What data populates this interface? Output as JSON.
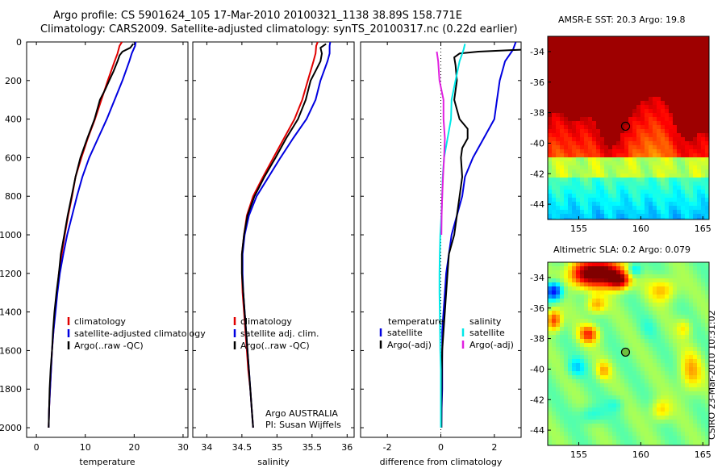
{
  "header": {
    "line1": "Argo profile: CS 5901624_105 17-Mar-2010 20100321_1138 38.89S 158.771E",
    "line2": "Climatology: CARS2009. Satellite-adjusted climatology: synTS_20100317.nc (0.22d earlier)"
  },
  "footer_stamp": "CSIRO 23-Mar-2010 10:31:02",
  "chart_data": [
    {
      "type": "line",
      "xlabel": "temperature",
      "xlim": [
        -2,
        31
      ],
      "ylim": [
        2050,
        0
      ],
      "xticks": [
        0,
        10,
        20,
        30
      ],
      "yticks": [
        0,
        200,
        400,
        600,
        800,
        1000,
        1200,
        1400,
        1600,
        1800,
        2000
      ],
      "legend": {
        "placement": "lower-left",
        "entries": [
          "climatology",
          "satellite-adjusted climatology",
          "Argo(..raw -QC)"
        ]
      },
      "series": [
        {
          "name": "climatology",
          "color": "#e00000",
          "points": [
            [
              17.5,
              0
            ],
            [
              17.0,
              20
            ],
            [
              16.6,
              60
            ],
            [
              16.0,
              100
            ],
            [
              14.6,
              200
            ],
            [
              13.3,
              300
            ],
            [
              12.0,
              400
            ],
            [
              10.5,
              500
            ],
            [
              9.2,
              600
            ],
            [
              8.0,
              700
            ],
            [
              7.3,
              800
            ],
            [
              6.5,
              900
            ],
            [
              5.8,
              1000
            ],
            [
              5.2,
              1100
            ],
            [
              4.6,
              1200
            ],
            [
              4.2,
              1300
            ],
            [
              3.8,
              1400
            ],
            [
              3.5,
              1500
            ],
            [
              3.2,
              1600
            ],
            [
              3.0,
              1700
            ],
            [
              2.8,
              1800
            ],
            [
              2.6,
              1900
            ],
            [
              2.5,
              2000
            ]
          ]
        },
        {
          "name": "satellite-adjusted climatology",
          "color": "#0000e0",
          "points": [
            [
              20.3,
              0
            ],
            [
              20.2,
              20
            ],
            [
              19.5,
              60
            ],
            [
              19.0,
              100
            ],
            [
              17.6,
              200
            ],
            [
              16.0,
              300
            ],
            [
              14.4,
              400
            ],
            [
              12.6,
              500
            ],
            [
              10.8,
              600
            ],
            [
              9.4,
              700
            ],
            [
              8.3,
              800
            ],
            [
              7.3,
              900
            ],
            [
              6.3,
              1000
            ],
            [
              5.5,
              1100
            ],
            [
              4.8,
              1200
            ],
            [
              4.3,
              1300
            ],
            [
              3.9,
              1400
            ],
            [
              3.5,
              1500
            ],
            [
              3.2,
              1600
            ],
            [
              3.0,
              1700
            ],
            [
              2.8,
              1800
            ],
            [
              2.6,
              1900
            ],
            [
              2.5,
              2000
            ]
          ]
        },
        {
          "name": "Argo(..raw -QC)",
          "color": "#000000",
          "points": [
            [
              19.8,
              10
            ],
            [
              19.2,
              30
            ],
            [
              17.6,
              50
            ],
            [
              17.0,
              70
            ],
            [
              16.6,
              100
            ],
            [
              15.8,
              150
            ],
            [
              14.9,
              200
            ],
            [
              14.0,
              250
            ],
            [
              13.0,
              300
            ],
            [
              11.9,
              400
            ],
            [
              10.4,
              500
            ],
            [
              9.0,
              600
            ],
            [
              8.0,
              700
            ],
            [
              7.2,
              800
            ],
            [
              6.4,
              900
            ],
            [
              5.7,
              1000
            ],
            [
              5.0,
              1100
            ],
            [
              4.6,
              1200
            ],
            [
              4.1,
              1300
            ],
            [
              3.7,
              1400
            ],
            [
              3.4,
              1500
            ],
            [
              3.2,
              1600
            ],
            [
              2.9,
              1700
            ],
            [
              2.7,
              1800
            ],
            [
              2.6,
              1900
            ],
            [
              2.5,
              2000
            ]
          ]
        }
      ]
    },
    {
      "type": "line",
      "xlabel": "salinity",
      "xlim": [
        33.8,
        36.1
      ],
      "ylim": [
        2050,
        0
      ],
      "xticks": [
        34,
        34.5,
        35,
        35.5,
        36
      ],
      "legend": {
        "placement": "lower-left",
        "entries": [
          "climatology",
          "satellite adj. clim.",
          "Argo(..raw -QC)"
        ]
      },
      "annotation": [
        "Argo AUSTRALIA",
        "PI: Susan Wijffels"
      ],
      "series": [
        {
          "name": "climatology",
          "color": "#e00000",
          "points": [
            [
              35.58,
              0
            ],
            [
              35.56,
              20
            ],
            [
              35.55,
              60
            ],
            [
              35.52,
              100
            ],
            [
              35.44,
              200
            ],
            [
              35.36,
              300
            ],
            [
              35.25,
              400
            ],
            [
              35.1,
              500
            ],
            [
              34.95,
              600
            ],
            [
              34.8,
              700
            ],
            [
              34.66,
              800
            ],
            [
              34.57,
              900
            ],
            [
              34.53,
              1000
            ],
            [
              34.5,
              1100
            ],
            [
              34.5,
              1200
            ],
            [
              34.51,
              1300
            ],
            [
              34.53,
              1400
            ],
            [
              34.55,
              1500
            ],
            [
              34.57,
              1600
            ],
            [
              34.59,
              1700
            ],
            [
              34.62,
              1800
            ],
            [
              34.64,
              1900
            ],
            [
              34.66,
              2000
            ]
          ]
        },
        {
          "name": "satellite adj. clim.",
          "color": "#0000e0",
          "points": [
            [
              35.76,
              0
            ],
            [
              35.75,
              20
            ],
            [
              35.75,
              60
            ],
            [
              35.72,
              100
            ],
            [
              35.62,
              200
            ],
            [
              35.55,
              300
            ],
            [
              35.42,
              400
            ],
            [
              35.23,
              500
            ],
            [
              35.05,
              600
            ],
            [
              34.88,
              700
            ],
            [
              34.71,
              800
            ],
            [
              34.6,
              900
            ],
            [
              34.54,
              1000
            ],
            [
              34.51,
              1100
            ],
            [
              34.51,
              1200
            ],
            [
              34.52,
              1300
            ],
            [
              34.54,
              1400
            ],
            [
              34.56,
              1500
            ],
            [
              34.58,
              1600
            ],
            [
              34.6,
              1700
            ],
            [
              34.62,
              1800
            ],
            [
              34.64,
              1900
            ],
            [
              34.66,
              2000
            ]
          ]
        },
        {
          "name": "Argo(..raw -QC)",
          "color": "#000000",
          "points": [
            [
              35.7,
              10
            ],
            [
              35.62,
              30
            ],
            [
              35.64,
              60
            ],
            [
              35.62,
              100
            ],
            [
              35.55,
              150
            ],
            [
              35.48,
              200
            ],
            [
              35.41,
              300
            ],
            [
              35.3,
              400
            ],
            [
              35.13,
              500
            ],
            [
              34.98,
              600
            ],
            [
              34.82,
              700
            ],
            [
              34.68,
              800
            ],
            [
              34.58,
              900
            ],
            [
              34.53,
              1000
            ],
            [
              34.5,
              1100
            ],
            [
              34.5,
              1200
            ],
            [
              34.52,
              1300
            ],
            [
              34.54,
              1400
            ],
            [
              34.56,
              1500
            ],
            [
              34.58,
              1600
            ],
            [
              34.6,
              1700
            ],
            [
              34.62,
              1800
            ],
            [
              34.64,
              1900
            ],
            [
              34.66,
              2000
            ]
          ]
        }
      ]
    },
    {
      "type": "line",
      "xlabel": "difference from climatology",
      "xlim": [
        -3,
        3
      ],
      "ylim": [
        2050,
        0
      ],
      "xticks": [
        -2,
        0,
        2
      ],
      "legend": {
        "placement": "lower-center",
        "temperature_heading": "temperature",
        "salinity_heading": "salinity",
        "entries": [
          "satellite",
          "Argo(-adj)",
          "satellite",
          "Argo(-adj)"
        ]
      },
      "series": [
        {
          "name": "satellite",
          "group": "temperature",
          "color": "#0000e0",
          "points": [
            [
              2.8,
              0
            ],
            [
              2.7,
              40
            ],
            [
              2.4,
              100
            ],
            [
              2.2,
              200
            ],
            [
              2.1,
              300
            ],
            [
              2.0,
              400
            ],
            [
              1.6,
              500
            ],
            [
              1.2,
              600
            ],
            [
              0.9,
              700
            ],
            [
              0.8,
              800
            ],
            [
              0.6,
              900
            ],
            [
              0.4,
              1000
            ],
            [
              0.3,
              1100
            ],
            [
              0.2,
              1200
            ],
            [
              0.15,
              1300
            ],
            [
              0.1,
              1400
            ],
            [
              0.05,
              1500
            ],
            [
              0.05,
              1600
            ],
            [
              0.05,
              1700
            ],
            [
              0.05,
              1800
            ],
            [
              0.03,
              1900
            ],
            [
              0.02,
              2000
            ]
          ]
        },
        {
          "name": "Argo(-adj)",
          "group": "temperature",
          "color": "#000000",
          "points": [
            [
              3.0,
              40
            ],
            [
              1.4,
              50
            ],
            [
              0.7,
              60
            ],
            [
              0.5,
              80
            ],
            [
              0.55,
              120
            ],
            [
              0.6,
              200
            ],
            [
              0.5,
              300
            ],
            [
              0.7,
              400
            ],
            [
              1.0,
              450
            ],
            [
              1.0,
              500
            ],
            [
              0.8,
              550
            ],
            [
              0.75,
              600
            ],
            [
              0.8,
              700
            ],
            [
              0.7,
              800
            ],
            [
              0.6,
              900
            ],
            [
              0.5,
              1000
            ],
            [
              0.3,
              1100
            ],
            [
              0.25,
              1200
            ],
            [
              0.2,
              1300
            ],
            [
              0.15,
              1400
            ],
            [
              0.1,
              1500
            ],
            [
              0.05,
              1600
            ],
            [
              0.04,
              1700
            ],
            [
              0.03,
              1800
            ],
            [
              0.02,
              1900
            ],
            [
              0.02,
              2000
            ]
          ]
        },
        {
          "name": "satellite",
          "group": "salinity",
          "color": "#00e8e8",
          "points": [
            [
              0.9,
              10
            ],
            [
              0.85,
              40
            ],
            [
              0.7,
              100
            ],
            [
              0.55,
              200
            ],
            [
              0.4,
              300
            ],
            [
              0.38,
              400
            ],
            [
              0.25,
              500
            ],
            [
              0.12,
              600
            ],
            [
              0.07,
              700
            ],
            [
              0.05,
              800
            ],
            [
              0.02,
              900
            ],
            [
              -0.02,
              1000
            ],
            [
              -0.04,
              1100
            ],
            [
              -0.05,
              1200
            ],
            [
              -0.05,
              1300
            ],
            [
              -0.04,
              1400
            ],
            [
              -0.03,
              1500
            ],
            [
              -0.02,
              1600
            ],
            [
              0.0,
              1700
            ],
            [
              0.0,
              1800
            ],
            [
              0.0,
              1900
            ],
            [
              0.0,
              2000
            ]
          ]
        },
        {
          "name": "Argo(-adj)",
          "group": "salinity",
          "color": "#e020e0",
          "points": [
            [
              -0.15,
              50
            ],
            [
              -0.1,
              100
            ],
            [
              -0.05,
              200
            ],
            [
              0.1,
              300
            ],
            [
              0.1,
              400
            ],
            [
              0.15,
              500
            ],
            [
              0.12,
              600
            ],
            [
              0.08,
              700
            ],
            [
              0.05,
              800
            ],
            [
              0.03,
              900
            ],
            [
              0.02,
              1000
            ]
          ]
        }
      ]
    },
    {
      "type": "heatmap",
      "title": "AMSR-E SST: 20.3 Argo: 19.8",
      "xlim": [
        152.5,
        165.5
      ],
      "ylim": [
        -45,
        -33
      ],
      "xticks": [
        155,
        160,
        165
      ],
      "yticks": [
        -34,
        -36,
        -38,
        -40,
        -42,
        -44
      ],
      "colormap": "jet",
      "marker": {
        "lon": 158.77,
        "lat": -38.89
      }
    },
    {
      "type": "heatmap",
      "title": "Altimetric SLA: 0.2 Argo: 0.079",
      "xlim": [
        152.5,
        165.5
      ],
      "ylim": [
        -45,
        -33
      ],
      "xticks": [
        155,
        160,
        165
      ],
      "yticks": [
        -34,
        -36,
        -38,
        -40,
        -42,
        -44
      ],
      "colormap": "jet",
      "marker": {
        "lon": 158.77,
        "lat": -38.89
      }
    }
  ]
}
